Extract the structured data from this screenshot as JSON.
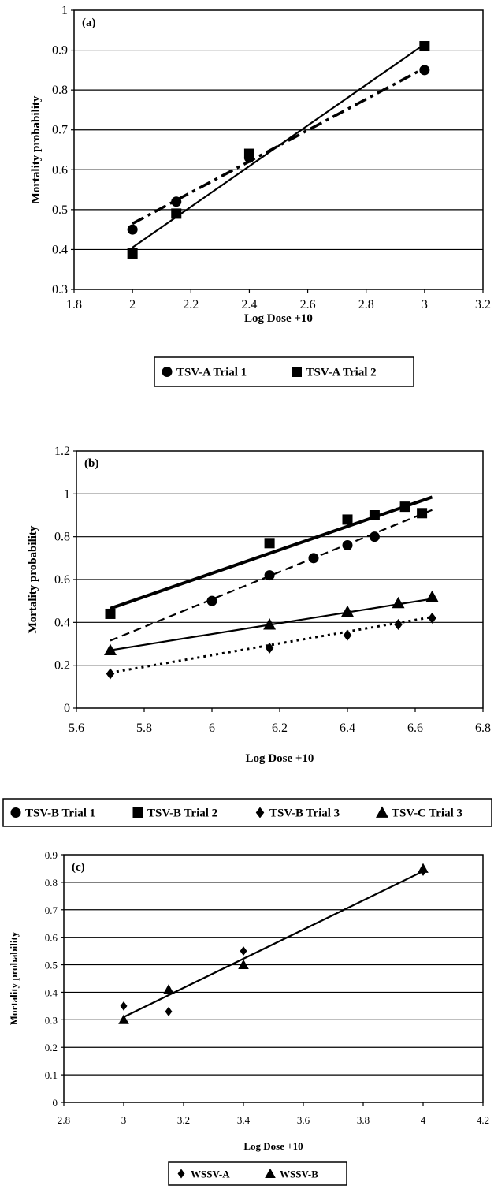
{
  "chart_data": [
    {
      "type": "scatter",
      "panel_label": "(a)",
      "xlabel": "Log Dose +10",
      "ylabel": "Mortality probability",
      "xlim": [
        1.8,
        3.2
      ],
      "ylim": [
        0.3,
        1.0
      ],
      "x_ticks": [
        "1.8",
        "2",
        "2.2",
        "2.4",
        "2.6",
        "2.8",
        "3",
        "3.2"
      ],
      "y_ticks": [
        "0.3",
        "0.4",
        "0.5",
        "0.6",
        "0.7",
        "0.8",
        "0.9",
        "1"
      ],
      "grid": "horizontal",
      "legend_position": "bottom",
      "series": [
        {
          "name": "TSV-A  Trial 1",
          "marker": "circle",
          "points": [
            [
              2.0,
              0.45
            ],
            [
              2.15,
              0.52
            ],
            [
              2.4,
              0.63
            ],
            [
              3.0,
              0.85
            ]
          ],
          "trend": {
            "x": [
              2.0,
              3.0
            ],
            "y": [
              0.465,
              0.855
            ],
            "style": "dashdot"
          }
        },
        {
          "name": "TSV-A  Trial 2",
          "marker": "square",
          "points": [
            [
              2.0,
              0.39
            ],
            [
              2.15,
              0.49
            ],
            [
              2.4,
              0.64
            ],
            [
              3.0,
              0.91
            ]
          ],
          "trend": {
            "x": [
              2.0,
              3.0
            ],
            "y": [
              0.405,
              0.915
            ],
            "style": "solid"
          }
        }
      ]
    },
    {
      "type": "scatter",
      "panel_label": "(b)",
      "xlabel": "Log Dose +10",
      "ylabel": "Mortality probability",
      "xlim": [
        5.6,
        6.8
      ],
      "ylim": [
        0,
        1.2
      ],
      "x_ticks": [
        "5.6",
        "5.8",
        "6",
        "6.2",
        "6.4",
        "6.6",
        "6.8"
      ],
      "y_ticks": [
        "0",
        "0.2",
        "0.4",
        "0.6",
        "0.8",
        "1",
        "1.2"
      ],
      "grid": "horizontal",
      "legend_position": "bottom",
      "series": [
        {
          "name": "TSV-B  Trial 1",
          "marker": "circle",
          "points": [
            [
              6.0,
              0.5
            ],
            [
              6.17,
              0.62
            ],
            [
              6.3,
              0.7
            ],
            [
              6.4,
              0.76
            ],
            [
              6.48,
              0.8
            ]
          ],
          "trend": {
            "x": [
              5.7,
              6.65
            ],
            "y": [
              0.315,
              0.925
            ],
            "style": "dashed"
          }
        },
        {
          "name": "TSV-B  Trial 2",
          "marker": "square",
          "points": [
            [
              5.7,
              0.44
            ],
            [
              6.17,
              0.77
            ],
            [
              6.4,
              0.88
            ],
            [
              6.48,
              0.9
            ],
            [
              6.57,
              0.94
            ],
            [
              6.62,
              0.91
            ]
          ],
          "trend": {
            "x": [
              5.7,
              6.65
            ],
            "y": [
              0.465,
              0.985
            ],
            "style": "thick"
          }
        },
        {
          "name": "TSV-B  Trial 3",
          "marker": "diamond",
          "points": [
            [
              5.7,
              0.16
            ],
            [
              6.17,
              0.28
            ],
            [
              6.4,
              0.34
            ],
            [
              6.55,
              0.39
            ],
            [
              6.65,
              0.42
            ]
          ],
          "trend": {
            "x": [
              5.7,
              6.65
            ],
            "y": [
              0.165,
              0.425
            ],
            "style": "dotted"
          }
        },
        {
          "name": "TSV-C  Trial 3",
          "marker": "triangle",
          "points": [
            [
              5.7,
              0.27
            ],
            [
              6.17,
              0.39
            ],
            [
              6.4,
              0.45
            ],
            [
              6.55,
              0.49
            ],
            [
              6.65,
              0.52
            ]
          ],
          "trend": {
            "x": [
              5.7,
              6.65
            ],
            "y": [
              0.27,
              0.51
            ],
            "style": "solid"
          }
        }
      ]
    },
    {
      "type": "scatter",
      "panel_label": "(c)",
      "xlabel": "Log Dose +10",
      "ylabel": "Mortality probability",
      "xlim": [
        2.8,
        4.2
      ],
      "ylim": [
        0,
        0.9
      ],
      "x_ticks": [
        "2.8",
        "3",
        "3.2",
        "3.4",
        "3.6",
        "3.8",
        "4",
        "4.2"
      ],
      "y_ticks": [
        "0",
        "0.1",
        "0.2",
        "0.3",
        "0.4",
        "0.5",
        "0.6",
        "0.7",
        "0.8",
        "0.9"
      ],
      "grid": "horizontal",
      "legend_position": "bottom",
      "series": [
        {
          "name": "WSSV-A",
          "marker": "diamond",
          "points": [
            [
              3.0,
              0.35
            ],
            [
              3.15,
              0.33
            ],
            [
              3.4,
              0.55
            ],
            [
              4.0,
              0.84
            ]
          ]
        },
        {
          "name": "WSSV-B",
          "marker": "triangle",
          "points": [
            [
              3.0,
              0.3
            ],
            [
              3.15,
              0.41
            ],
            [
              3.4,
              0.5
            ],
            [
              4.0,
              0.85
            ]
          ],
          "trend": {
            "x": [
              3.0,
              4.0
            ],
            "y": [
              0.31,
              0.84
            ],
            "style": "solid"
          }
        }
      ]
    }
  ]
}
